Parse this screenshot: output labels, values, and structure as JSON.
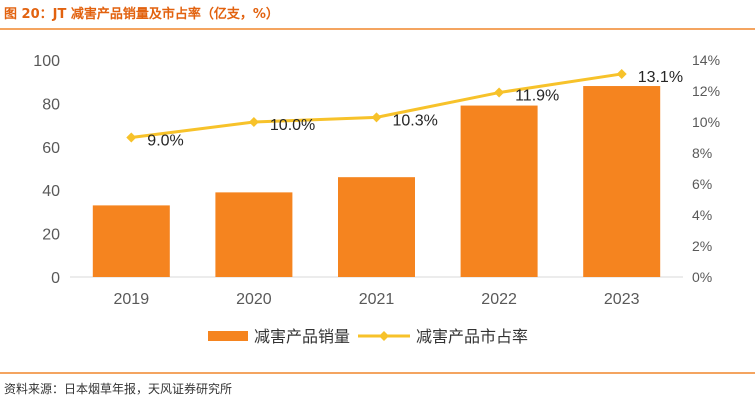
{
  "figure_title": "图 20：JT 减害产品销量及市占率（亿支，%）",
  "source": "资料来源：日本烟草年报，天风证券研究所",
  "colors": {
    "bar": "#f5841f",
    "line": "#f7c22a",
    "title": "#e2620f",
    "rule": "#f4a460"
  },
  "chart_data": {
    "type": "bar",
    "categories": [
      "2019",
      "2020",
      "2021",
      "2022",
      "2023"
    ],
    "series": [
      {
        "name": "减害产品销量",
        "type": "bar",
        "axis": "left",
        "values": [
          33,
          39,
          46,
          79,
          88
        ]
      },
      {
        "name": "减害产品市占率",
        "type": "line",
        "axis": "right",
        "values": [
          9.0,
          10.0,
          10.3,
          11.9,
          13.1
        ],
        "labels": [
          "9.0%",
          "10.0%",
          "10.3%",
          "11.9%",
          "13.1%"
        ]
      }
    ],
    "ylim_left": [
      0,
      100
    ],
    "yticks_left": [
      "0",
      "20",
      "40",
      "60",
      "80",
      "100"
    ],
    "ylim_right": [
      0,
      14
    ],
    "yticks_right": [
      "0%",
      "2%",
      "4%",
      "6%",
      "8%",
      "10%",
      "12%",
      "14%"
    ],
    "grid": false,
    "legend_position": "bottom"
  }
}
